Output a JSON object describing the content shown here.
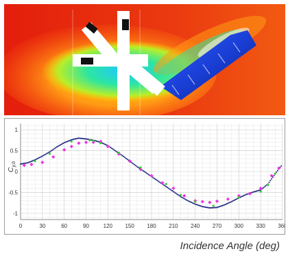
{
  "figure": {
    "colors": {
      "field_hot": "#e8200f",
      "field_warm": "#ff8a10",
      "field_cold": "#1a3fd6",
      "body": "#ffffff",
      "block": "#111111"
    }
  },
  "chart_data": {
    "type": "scatter",
    "xlabel": "Incidence Angle (deg)",
    "ylabel": "C",
    "ylabel_sub": "y,b",
    "xlim": [
      0,
      360
    ],
    "ylim": [
      -1.15,
      1.15
    ],
    "xticks": [
      "0",
      "30",
      "60",
      "90",
      "120",
      "150",
      "180",
      "210",
      "240",
      "270",
      "300",
      "330",
      "360"
    ],
    "yticks": [
      "-1",
      "-0.5",
      "0",
      "0.5",
      "1"
    ],
    "grid": true,
    "colors": {
      "dense": "#1a237e",
      "measured": "#ee33dd",
      "green": "#33cc33"
    },
    "series": [
      {
        "marker": "dense-dots",
        "x": [
          0,
          10,
          20,
          30,
          40,
          50,
          60,
          70,
          80,
          90,
          100,
          110,
          120,
          130,
          140,
          150,
          160,
          170,
          180,
          190,
          200,
          210,
          220,
          230,
          240,
          250,
          260,
          270,
          280,
          290,
          300,
          310,
          320,
          330,
          340,
          350,
          360
        ],
        "y": [
          0.18,
          0.21,
          0.28,
          0.37,
          0.47,
          0.59,
          0.69,
          0.76,
          0.8,
          0.78,
          0.75,
          0.7,
          0.62,
          0.5,
          0.38,
          0.25,
          0.12,
          0.0,
          -0.12,
          -0.24,
          -0.36,
          -0.48,
          -0.6,
          -0.7,
          -0.78,
          -0.84,
          -0.87,
          -0.86,
          -0.8,
          -0.72,
          -0.63,
          -0.55,
          -0.49,
          -0.44,
          -0.3,
          -0.05,
          0.17
        ]
      },
      {
        "marker": "diamond",
        "x": [
          5,
          15,
          30,
          45,
          60,
          70,
          80,
          90,
          100,
          110,
          120,
          135,
          150,
          165,
          180,
          195,
          210,
          225,
          240,
          250,
          260,
          270,
          285,
          300,
          315,
          330,
          345,
          355
        ],
        "y": [
          0.15,
          0.17,
          0.22,
          0.35,
          0.52,
          0.6,
          0.68,
          0.7,
          0.7,
          0.72,
          0.6,
          0.42,
          0.25,
          0.05,
          -0.1,
          -0.27,
          -0.4,
          -0.58,
          -0.7,
          -0.72,
          -0.74,
          -0.71,
          -0.66,
          -0.58,
          -0.53,
          -0.4,
          -0.1,
          0.08
        ]
      },
      {
        "marker": "green-dot",
        "x": [
          20,
          40,
          70,
          95,
          100,
          110,
          135,
          165,
          200,
          220,
          240,
          265,
          300,
          330,
          340,
          350
        ],
        "y": [
          0.25,
          0.43,
          0.72,
          0.75,
          0.74,
          0.68,
          0.45,
          0.1,
          -0.3,
          -0.56,
          -0.72,
          -0.82,
          -0.62,
          -0.48,
          -0.32,
          -0.05
        ]
      }
    ]
  }
}
